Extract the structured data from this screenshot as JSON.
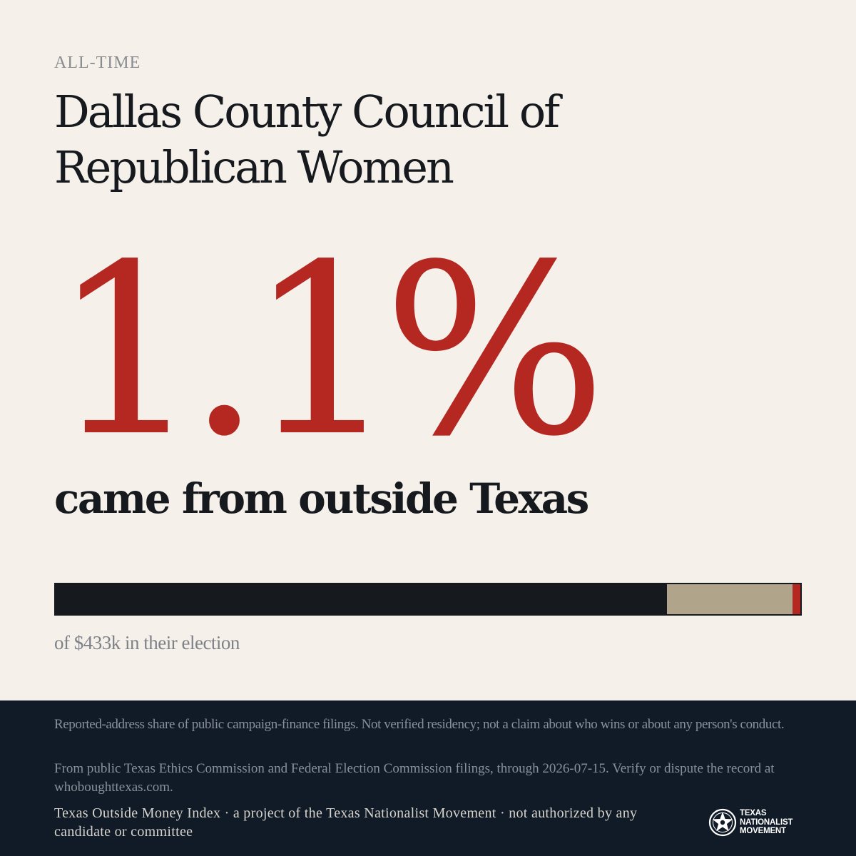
{
  "header": {
    "eyebrow": "ALL-TIME",
    "title": "Dallas County Council of Republican Women"
  },
  "stat": {
    "value": "1.1%",
    "caption": "came from outside Texas"
  },
  "bar": {
    "segments": [
      {
        "name": "dark",
        "fraction": 0.821,
        "color": "#16191e"
      },
      {
        "name": "tan",
        "fraction": 0.168,
        "color": "#b0a58b"
      },
      {
        "name": "red",
        "fraction": 0.011,
        "color": "#b52822"
      }
    ],
    "caption": "of $433k in their election"
  },
  "footer": {
    "note_1": "Reported-address share of public campaign-finance filings. Not verified residency; not a claim about who wins or about any person's conduct.",
    "note_2": "From public Texas Ethics Commission and Federal Election Commission filings, through 2026-07-15. Verify or dispute the record at whoboughttexas.com.",
    "credit": "Texas Outside Money Index · a project of the Texas Nationalist Movement · not authorized by any candidate or committee",
    "logo": {
      "icon": "star-badge-icon",
      "line_1": "TEXAS",
      "line_2": "NATIONALIST",
      "line_3": "MOVEMENT"
    }
  },
  "colors": {
    "background": "#f5f1ea",
    "accent": "#b52822",
    "ink": "#16191e",
    "footer": "#111b28"
  }
}
